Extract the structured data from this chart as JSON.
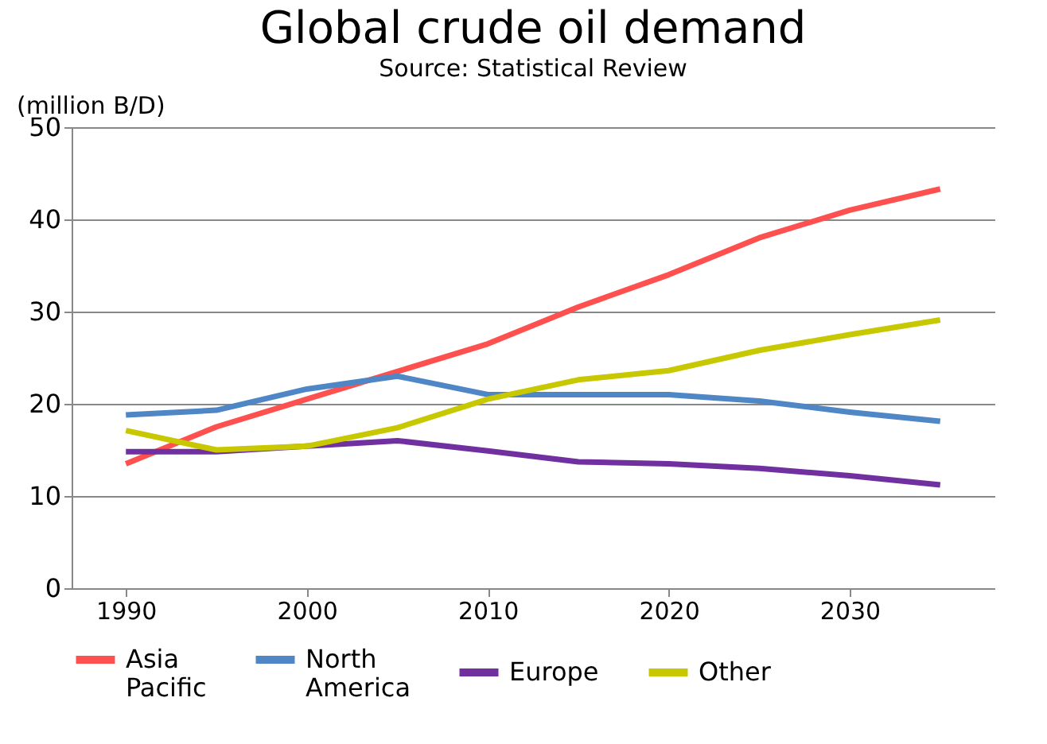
{
  "chart_data": {
    "type": "line",
    "title": "Global crude oil demand",
    "subtitle": "Source: Statistical Review",
    "ylabel": "(million B/D)",
    "x": [
      1990,
      1995,
      2000,
      2005,
      2010,
      2015,
      2020,
      2025,
      2030,
      2035
    ],
    "xlim": [
      1987,
      2038
    ],
    "xticks": [
      1990,
      2000,
      2010,
      2020,
      2030
    ],
    "ylim": [
      0,
      50
    ],
    "yticks": [
      0,
      10,
      20,
      30,
      40,
      50
    ],
    "grid": "y",
    "legend": "bottom",
    "marker": "none",
    "line_style": "solid",
    "series": [
      {
        "name": "Asia Pacific",
        "color": "#ff5050",
        "values": [
          13.5,
          17.5,
          20.5,
          23.5,
          26.5,
          30.5,
          34,
          38,
          41,
          43.3
        ]
      },
      {
        "name": "North America",
        "color": "#4f86c6",
        "values": [
          18.8,
          19.3,
          21.6,
          23,
          21,
          21,
          21,
          20.3,
          19.1,
          18.1
        ]
      },
      {
        "name": "Europe",
        "color": "#7030a0",
        "values": [
          14.8,
          14.8,
          15.4,
          16,
          14.9,
          13.7,
          13.5,
          13,
          12.2,
          11.2
        ]
      },
      {
        "name": "Other",
        "color": "#c8c800",
        "values": [
          17.1,
          15,
          15.4,
          17.4,
          20.5,
          22.6,
          23.6,
          25.8,
          27.5,
          29.1
        ]
      }
    ]
  }
}
